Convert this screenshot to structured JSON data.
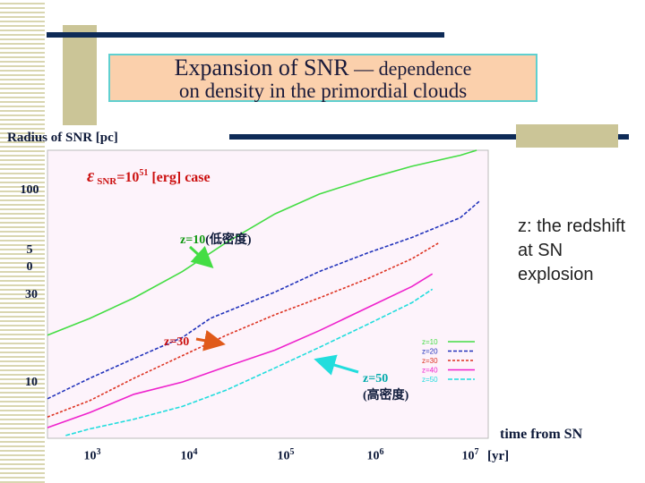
{
  "slide": {
    "title_main": "Expansion of SNR",
    "title_dash": " — dependence",
    "title_line2": "on density in the primordial clouds",
    "side_note": "z: the redshift at SN explosion",
    "case_label_epsilon": "ε",
    "case_label_sub": "SNR",
    "case_label_rest": "=10",
    "case_label_exp": "51",
    "case_label_tail": " [erg] case",
    "annotation_z10": "z=10",
    "annotation_z10_paren": "(低密度)",
    "annotation_z30": "z=30",
    "annotation_z50": "z=50",
    "annotation_z50_paren": "(高密度)"
  },
  "colors": {
    "z10": "#44dd44",
    "z20": "#2233bb",
    "z30": "#dd3322",
    "z40": "#ee22cc",
    "z50": "#22dddd",
    "plot_bg": "#fdf3fb",
    "dark_text": "#0e1a3a",
    "red_text": "#cc1111",
    "green_text": "#119911",
    "cyan_text": "#00aaaa"
  },
  "chart_data": {
    "type": "line",
    "x_scale": "log",
    "y_scale": "log",
    "xlabel": "time from SN",
    "x_unit": "[yr]",
    "ylabel": "Radius of SNR  [pc]",
    "xlim": [
      350,
      20000000
    ],
    "ylim": [
      6.5,
      150
    ],
    "x_ticks": [
      {
        "value": 1000,
        "base": "10",
        "exp": "3"
      },
      {
        "value": 10000,
        "base": "10",
        "exp": "4"
      },
      {
        "value": 100000,
        "base": "10",
        "exp": "5"
      },
      {
        "value": 1000000,
        "base": "10",
        "exp": "6"
      },
      {
        "value": 10000000,
        "base": "10",
        "exp": "7"
      }
    ],
    "y_ticks": [
      {
        "value": 100,
        "label": "100"
      },
      {
        "value": 50,
        "label": "5\n0"
      },
      {
        "value": 30,
        "label": "30"
      },
      {
        "value": 10,
        "label": "10"
      }
    ],
    "legend_position": "bottom-right",
    "series": [
      {
        "name": "z=10",
        "x": [
          350,
          1000,
          3000,
          10000,
          30000,
          100000,
          300000,
          1000000,
          3000000,
          10000000,
          15000000
        ],
        "y": [
          20,
          24,
          30,
          40,
          55,
          75,
          93,
          110,
          126,
          142,
          150
        ]
      },
      {
        "name": "z=20",
        "x": [
          350,
          1000,
          3000,
          10000,
          20000,
          100000,
          300000,
          1000000,
          3000000,
          10000000,
          16000000
        ],
        "y": [
          10,
          12.5,
          15.5,
          19.5,
          24,
          32,
          40,
          49,
          58,
          72,
          86
        ]
      },
      {
        "name": "z=30",
        "x": [
          350,
          1000,
          3000,
          10000,
          30000,
          100000,
          300000,
          1000000,
          3000000,
          6000000
        ],
        "y": [
          8.2,
          9.8,
          12.5,
          16,
          20,
          25,
          30,
          37,
          46,
          55
        ]
      },
      {
        "name": "z=40",
        "x": [
          350,
          1000,
          3000,
          10000,
          30000,
          100000,
          300000,
          1000000,
          3000000,
          5000000
        ],
        "y": [
          7.3,
          8.6,
          10.5,
          12,
          14.2,
          17,
          21,
          27,
          34,
          39
        ]
      },
      {
        "name": "z=50",
        "x": [
          550,
          1000,
          3000,
          10000,
          30000,
          100000,
          300000,
          1000000,
          3000000,
          5000000
        ],
        "y": [
          6.7,
          7.2,
          8,
          9.2,
          11,
          14,
          17.5,
          22.5,
          28.5,
          33
        ]
      }
    ]
  }
}
